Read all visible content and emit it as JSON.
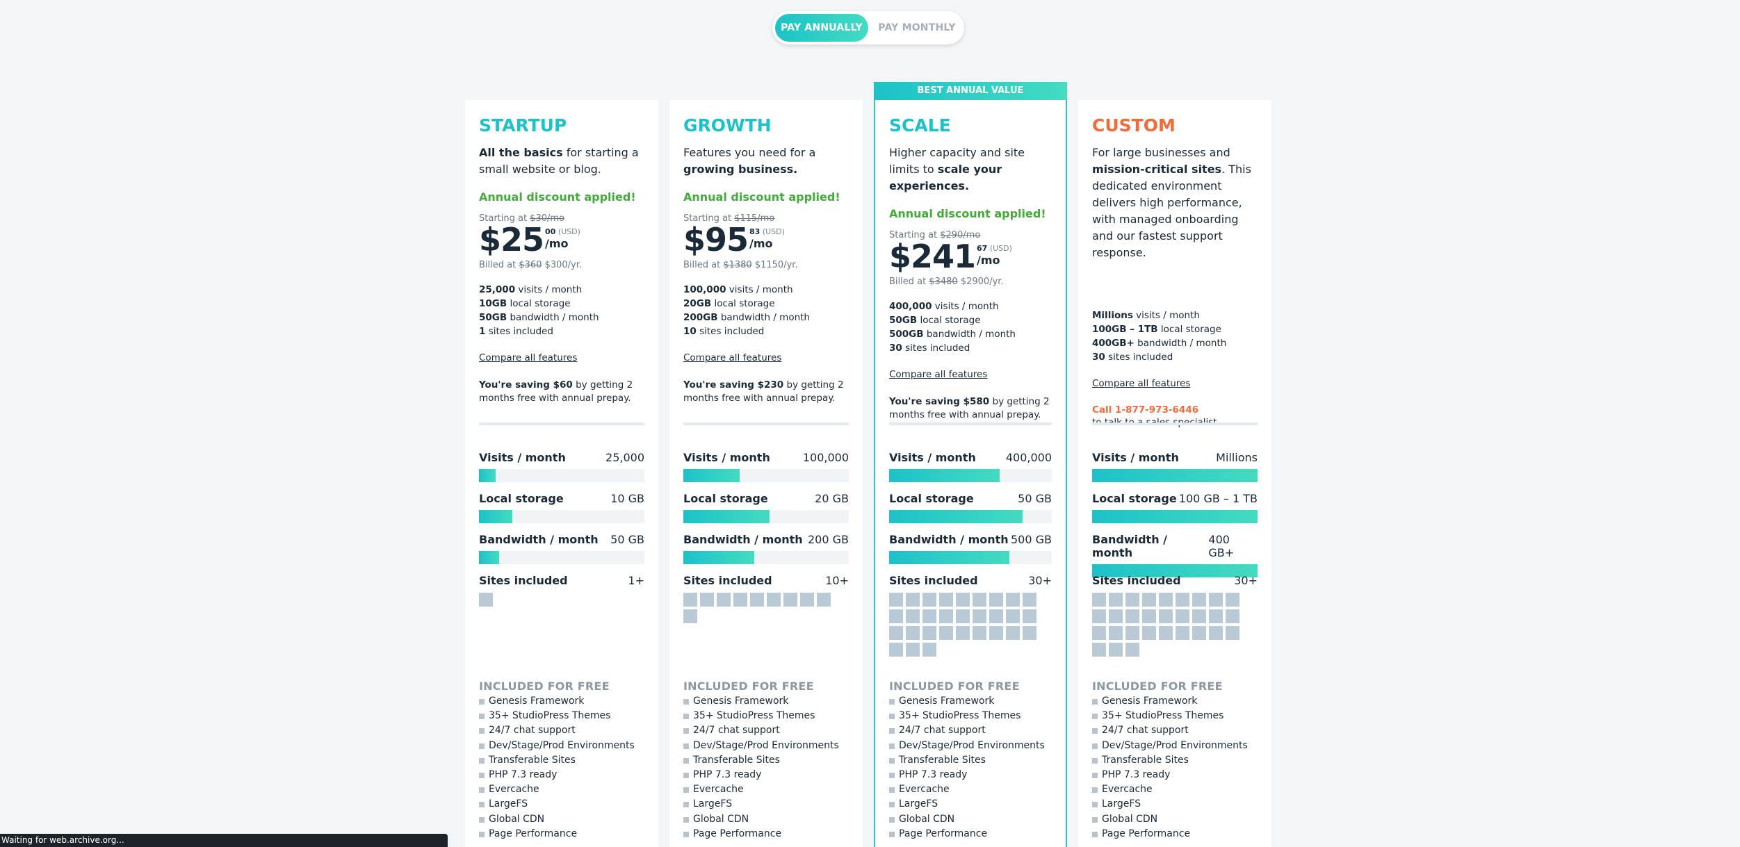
{
  "toggle": {
    "annual": "PAY ANNUALLY",
    "monthly": "PAY MONTHLY"
  },
  "banner": "BEST ANNUAL VALUE",
  "discount": "Annual discount applied!",
  "compare_label": "Compare all features",
  "included_title": "INCLUDED FOR FREE",
  "included": [
    "Genesis Framework",
    "35+ StudioPress Themes",
    "24/7 chat support",
    "Dev/Stage/Prod Environments",
    "Transferable Sites",
    "PHP 7.3 ready",
    "Evercache",
    "LargeFS",
    "Global CDN",
    "Page Performance"
  ],
  "meter_labels": {
    "visits": "Visits / month",
    "storage": "Local storage",
    "bandwidth": "Bandwidth / month",
    "sites": "Sites included"
  },
  "plans": [
    {
      "name": "STARTUP",
      "desc": [
        {
          "t": "All the basics",
          "b": true
        },
        {
          "t": " for starting a small website or blog.",
          "b": false
        }
      ],
      "starting_prefix": "Starting at ",
      "starting_old": "$30/mo",
      "price": "$25",
      "cents": "00",
      "usd": " (USD)",
      "per": "/mo",
      "billed_prefix": "Billed at ",
      "billed_old": "$360",
      "billed_new": " $300/yr.",
      "specs": [
        [
          "25,000",
          " visits / month"
        ],
        [
          "10GB",
          " local storage"
        ],
        [
          "50GB",
          " bandwidth / month"
        ],
        [
          "1",
          " sites included"
        ]
      ],
      "saving_bold": "You're saving $60",
      "saving_rest": " by getting 2 months free with annual prepay.",
      "meters": {
        "visits": "25,000",
        "storage": "10 GB",
        "bandwidth": "50 GB",
        "sites": "1+"
      },
      "fill": {
        "visits": 0.1,
        "storage": 0.2,
        "bandwidth": 0.12
      },
      "site_count": 1
    },
    {
      "name": "GROWTH",
      "desc": [
        {
          "t": "Features you need for a ",
          "b": false
        },
        {
          "t": "growing business.",
          "b": true
        }
      ],
      "starting_prefix": "Starting at ",
      "starting_old": "$115/mo",
      "price": "$95",
      "cents": "83",
      "usd": " (USD)",
      "per": "/mo",
      "billed_prefix": "Billed at ",
      "billed_old": "$1380",
      "billed_new": " $1150/yr.",
      "specs": [
        [
          "100,000",
          " visits / month"
        ],
        [
          "20GB",
          " local storage"
        ],
        [
          "200GB",
          " bandwidth / month"
        ],
        [
          "10",
          " sites included"
        ]
      ],
      "saving_bold": "You're saving $230",
      "saving_rest": " by getting 2 months free with annual prepay.",
      "meters": {
        "visits": "100,000",
        "storage": "20 GB",
        "bandwidth": "200 GB",
        "sites": "10+"
      },
      "fill": {
        "visits": 0.34,
        "storage": 0.52,
        "bandwidth": 0.43
      },
      "site_count": 10
    },
    {
      "name": "SCALE",
      "desc": [
        {
          "t": "Higher capacity and site limits to ",
          "b": false
        },
        {
          "t": "scale your experiences.",
          "b": true
        }
      ],
      "starting_prefix": "Starting at ",
      "starting_old": "$290/mo",
      "price": "$241",
      "cents": "67",
      "usd": " (USD)",
      "per": "/mo",
      "billed_prefix": "Billed at ",
      "billed_old": "$3480",
      "billed_new": " $2900/yr.",
      "specs": [
        [
          "400,000",
          " visits / month"
        ],
        [
          "50GB",
          " local storage"
        ],
        [
          "500GB",
          " bandwidth / month"
        ],
        [
          "30",
          " sites included"
        ]
      ],
      "saving_bold": "You're saving $580",
      "saving_rest": " by getting 2 months free with annual prepay.",
      "meters": {
        "visits": "400,000",
        "storage": "50 GB",
        "bandwidth": "500 GB",
        "sites": "30+"
      },
      "fill": {
        "visits": 0.68,
        "storage": 0.82,
        "bandwidth": 0.74
      },
      "site_count": 30
    },
    {
      "name": "CUSTOM",
      "desc": [
        {
          "t": "For large businesses and ",
          "b": false
        },
        {
          "t": "mission-critical sites",
          "b": true
        },
        {
          "t": ". This dedicated environment delivers high performance, with managed onboarding and our fastest support response.",
          "b": false
        }
      ],
      "specs": [
        [
          "Millions",
          " visits / month"
        ],
        [
          "100GB – 1TB",
          " local storage"
        ],
        [
          "400GB+",
          " bandwidth / month"
        ],
        [
          "30",
          " sites included"
        ]
      ],
      "call": "Call 1-877-973-6446",
      "call_rest": "to talk to a sales specialist",
      "meters": {
        "visits": "Millions",
        "storage": "100 GB – 1 TB",
        "bandwidth": "400 GB+",
        "sites": "30+"
      },
      "fill": {
        "visits": 1.0,
        "storage": 1.0,
        "bandwidth": 1.0
      },
      "site_count": 30
    }
  ],
  "status": "Waiting for web.archive.org..."
}
